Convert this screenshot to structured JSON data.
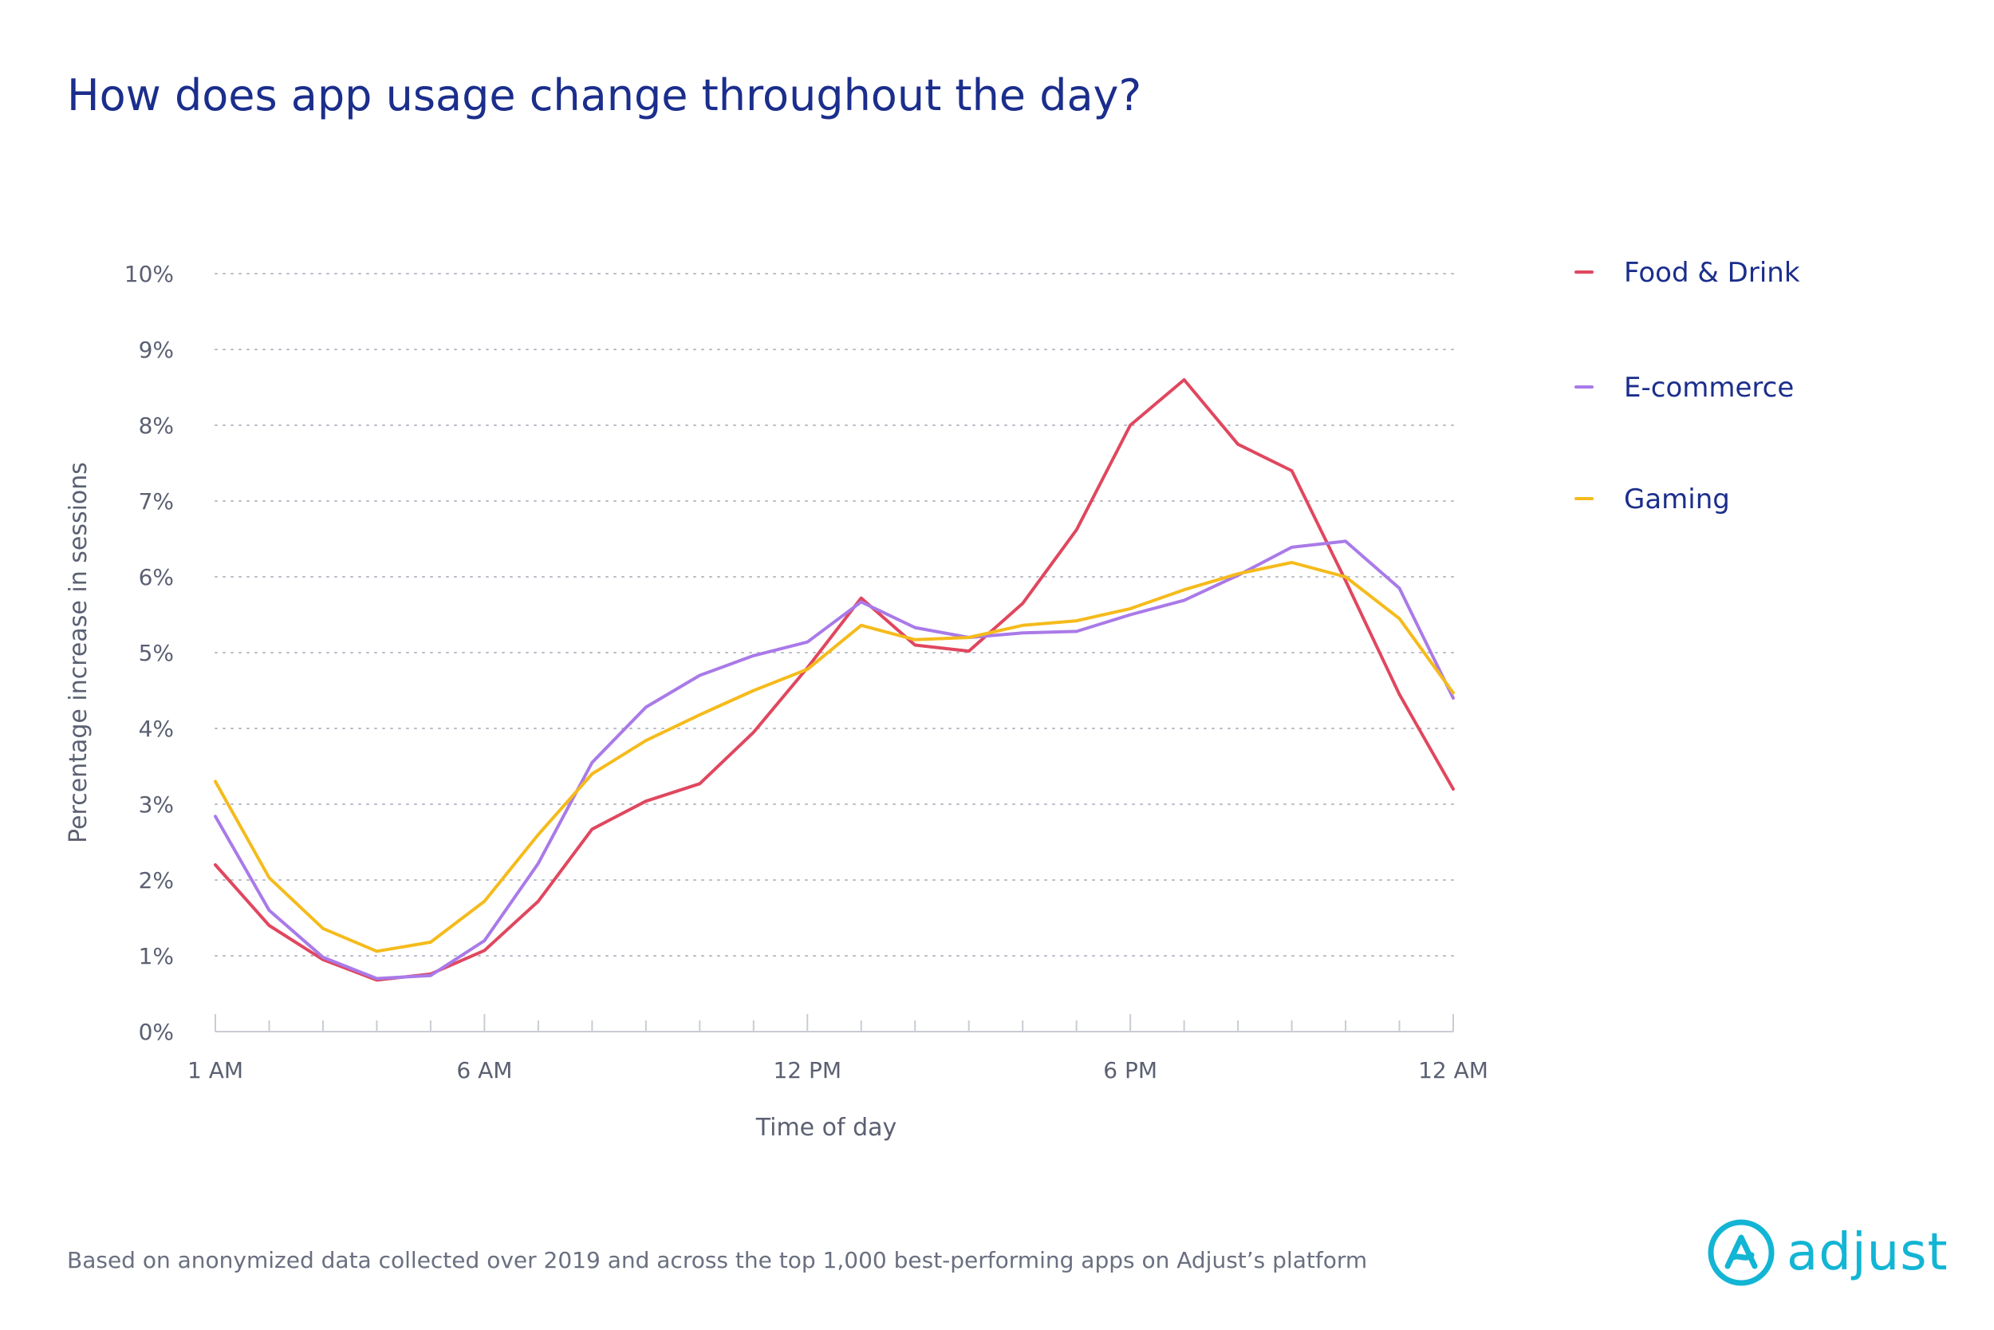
{
  "title": "How does app usage change throughout the day?",
  "footnote": "Based on anonymized data collected over 2019 and across the top 1,000 best-performing apps on Adjust’s platform",
  "logo": {
    "text": "adjust",
    "icon": "adjust-logo-icon",
    "color": "#13b5d4"
  },
  "chart_data": {
    "type": "line",
    "xlabel": "Time of day",
    "ylabel": "Percentage increase in sessions",
    "x_tick_labels": [
      "1 AM",
      "6 AM",
      "12 PM",
      "6 PM",
      "12 AM"
    ],
    "x_tick_hours": [
      1,
      6,
      12,
      18,
      24
    ],
    "x": [
      1,
      2,
      3,
      4,
      5,
      6,
      7,
      8,
      9,
      10,
      11,
      12,
      13,
      14,
      15,
      16,
      17,
      18,
      19,
      20,
      21,
      22,
      23,
      24
    ],
    "xlim": [
      1,
      24
    ],
    "y_tick_labels": [
      "0%",
      "1%",
      "2%",
      "3%",
      "4%",
      "5%",
      "6%",
      "7%",
      "8%",
      "9%",
      "10%"
    ],
    "ylim": [
      0,
      10
    ],
    "grid": "horizontal-dotted",
    "legend": "right",
    "series": [
      {
        "name": "Food & Drink",
        "color": "#e0475f",
        "values": [
          2.2,
          1.4,
          0.95,
          0.68,
          0.76,
          1.07,
          1.72,
          2.67,
          3.04,
          3.27,
          3.95,
          4.8,
          5.72,
          5.1,
          5.02,
          5.65,
          6.62,
          8.0,
          8.6,
          7.75,
          7.4,
          5.95,
          4.45,
          3.2
        ]
      },
      {
        "name": "E-commerce",
        "color": "#a97ae8",
        "values": [
          2.84,
          1.6,
          0.98,
          0.7,
          0.74,
          1.2,
          2.22,
          3.55,
          4.28,
          4.7,
          4.96,
          5.14,
          5.67,
          5.33,
          5.2,
          5.26,
          5.28,
          5.5,
          5.69,
          6.02,
          6.39,
          6.47,
          5.85,
          4.4
        ]
      },
      {
        "name": "Gaming",
        "color": "#f5bb1c",
        "values": [
          3.3,
          2.03,
          1.36,
          1.06,
          1.18,
          1.72,
          2.6,
          3.4,
          3.84,
          4.18,
          4.5,
          4.78,
          5.36,
          5.17,
          5.2,
          5.36,
          5.42,
          5.58,
          5.83,
          6.04,
          6.19,
          6.0,
          5.45,
          4.47
        ]
      }
    ]
  }
}
